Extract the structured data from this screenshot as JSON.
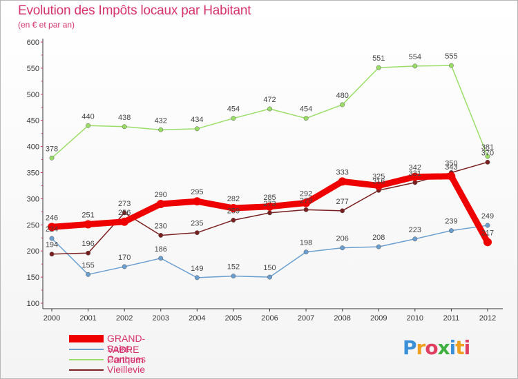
{
  "title": "Evolution des Impôts locaux par Habitant",
  "subtitle": "(en € et par an)",
  "logo": "Proxiti",
  "chart_data": {
    "type": "line",
    "x": [
      "2000",
      "2001",
      "2002",
      "2003",
      "2004",
      "2005",
      "2006",
      "2007",
      "2008",
      "2009",
      "2010",
      "2011",
      "2012"
    ],
    "ylim": [
      100,
      600
    ],
    "yticks": [
      100,
      150,
      200,
      250,
      300,
      350,
      400,
      450,
      500,
      550,
      600
    ],
    "grid": "none",
    "legend": "bottom-left",
    "series": [
      {
        "name": "GRAND-VABRE",
        "color": "#ee0000",
        "values": [
          246,
          251,
          256,
          290,
          295,
          282,
          285,
          292,
          333,
          325,
          342,
          343,
          217
        ]
      },
      {
        "name": "Saint-Parthem",
        "color": "#6a9fd0",
        "values": [
          224,
          155,
          170,
          186,
          149,
          152,
          150,
          198,
          206,
          208,
          223,
          239,
          249
        ]
      },
      {
        "name": "Conques",
        "color": "#99dd66",
        "values": [
          378,
          440,
          438,
          432,
          434,
          454,
          472,
          454,
          480,
          551,
          554,
          555,
          381
        ]
      },
      {
        "name": "Vieillevie",
        "color": "#7a1f1f",
        "values": [
          194,
          196,
          273,
          230,
          235,
          259,
          273,
          279,
          277,
          316,
          331,
          350,
          370
        ]
      }
    ]
  }
}
